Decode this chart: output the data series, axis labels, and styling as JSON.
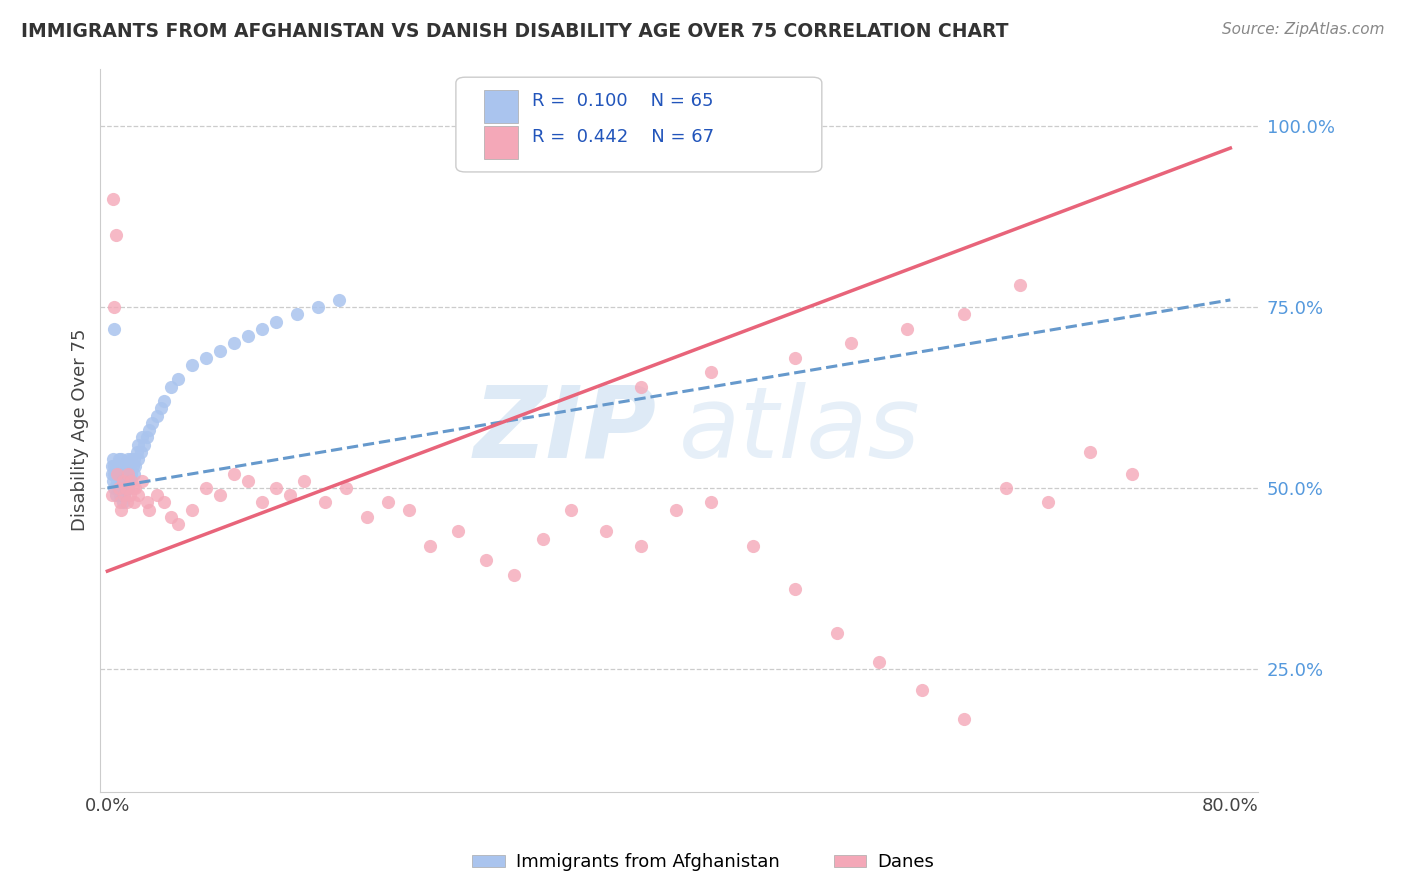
{
  "title": "IMMIGRANTS FROM AFGHANISTAN VS DANISH DISABILITY AGE OVER 75 CORRELATION CHART",
  "source": "Source: ZipAtlas.com",
  "ylabel": "Disability Age Over 75",
  "xlim": [
    -0.005,
    0.82
  ],
  "ylim": [
    0.08,
    1.08
  ],
  "yticks_right": [
    0.25,
    0.5,
    0.75,
    1.0
  ],
  "yticklabels_right": [
    "25.0%",
    "50.0%",
    "75.0%",
    "100.0%"
  ],
  "legend_r1": "R = 0.100",
  "legend_n1": "N = 65",
  "legend_r2": "R = 0.442",
  "legend_n2": "N = 67",
  "color_blue": "#aac4ee",
  "color_pink": "#f4a8b8",
  "color_blue_line": "#6699cc",
  "color_pink_line": "#e8647a",
  "series1_label": "Immigrants from Afghanistan",
  "series2_label": "Danes",
  "background": "#ffffff",
  "blue_trend_x0": 0.0,
  "blue_trend_y0": 0.5,
  "blue_trend_x1": 0.8,
  "blue_trend_y1": 0.76,
  "pink_trend_x0": 0.0,
  "pink_trend_y0": 0.385,
  "pink_trend_x1": 0.8,
  "pink_trend_y1": 0.97,
  "blue_pts_x": [
    0.003,
    0.003,
    0.004,
    0.004,
    0.005,
    0.005,
    0.005,
    0.006,
    0.006,
    0.007,
    0.007,
    0.008,
    0.008,
    0.008,
    0.009,
    0.009,
    0.01,
    0.01,
    0.01,
    0.011,
    0.011,
    0.011,
    0.012,
    0.012,
    0.012,
    0.013,
    0.013,
    0.014,
    0.014,
    0.015,
    0.015,
    0.015,
    0.016,
    0.016,
    0.017,
    0.017,
    0.018,
    0.019,
    0.019,
    0.02,
    0.021,
    0.022,
    0.022,
    0.024,
    0.025,
    0.026,
    0.028,
    0.03,
    0.032,
    0.035,
    0.038,
    0.04,
    0.045,
    0.05,
    0.06,
    0.07,
    0.08,
    0.09,
    0.1,
    0.11,
    0.12,
    0.135,
    0.15,
    0.165,
    0.005
  ],
  "blue_pts_y": [
    0.52,
    0.53,
    0.51,
    0.54,
    0.5,
    0.52,
    0.53,
    0.49,
    0.52,
    0.51,
    0.53,
    0.5,
    0.52,
    0.54,
    0.49,
    0.51,
    0.5,
    0.52,
    0.54,
    0.48,
    0.51,
    0.53,
    0.49,
    0.51,
    0.53,
    0.5,
    0.52,
    0.51,
    0.53,
    0.5,
    0.52,
    0.54,
    0.51,
    0.53,
    0.52,
    0.54,
    0.53,
    0.52,
    0.54,
    0.53,
    0.55,
    0.54,
    0.56,
    0.55,
    0.57,
    0.56,
    0.57,
    0.58,
    0.59,
    0.6,
    0.61,
    0.62,
    0.64,
    0.65,
    0.67,
    0.68,
    0.69,
    0.7,
    0.71,
    0.72,
    0.73,
    0.74,
    0.75,
    0.76,
    0.72
  ],
  "pink_pts_x": [
    0.003,
    0.004,
    0.005,
    0.006,
    0.007,
    0.008,
    0.009,
    0.01,
    0.011,
    0.012,
    0.013,
    0.014,
    0.015,
    0.016,
    0.017,
    0.018,
    0.019,
    0.02,
    0.022,
    0.025,
    0.028,
    0.03,
    0.035,
    0.04,
    0.045,
    0.05,
    0.06,
    0.07,
    0.08,
    0.09,
    0.1,
    0.11,
    0.12,
    0.13,
    0.14,
    0.155,
    0.17,
    0.185,
    0.2,
    0.215,
    0.23,
    0.25,
    0.27,
    0.29,
    0.31,
    0.33,
    0.355,
    0.38,
    0.405,
    0.43,
    0.46,
    0.49,
    0.52,
    0.55,
    0.58,
    0.61,
    0.64,
    0.67,
    0.7,
    0.73,
    0.38,
    0.43,
    0.49,
    0.53,
    0.57,
    0.61,
    0.65
  ],
  "pink_pts_y": [
    0.49,
    0.9,
    0.75,
    0.85,
    0.52,
    0.5,
    0.48,
    0.47,
    0.51,
    0.49,
    0.5,
    0.48,
    0.52,
    0.49,
    0.51,
    0.5,
    0.48,
    0.5,
    0.49,
    0.51,
    0.48,
    0.47,
    0.49,
    0.48,
    0.46,
    0.45,
    0.47,
    0.5,
    0.49,
    0.52,
    0.51,
    0.48,
    0.5,
    0.49,
    0.51,
    0.48,
    0.5,
    0.46,
    0.48,
    0.47,
    0.42,
    0.44,
    0.4,
    0.38,
    0.43,
    0.47,
    0.44,
    0.42,
    0.47,
    0.48,
    0.42,
    0.36,
    0.3,
    0.26,
    0.22,
    0.18,
    0.5,
    0.48,
    0.55,
    0.52,
    0.64,
    0.66,
    0.68,
    0.7,
    0.72,
    0.74,
    0.78
  ]
}
